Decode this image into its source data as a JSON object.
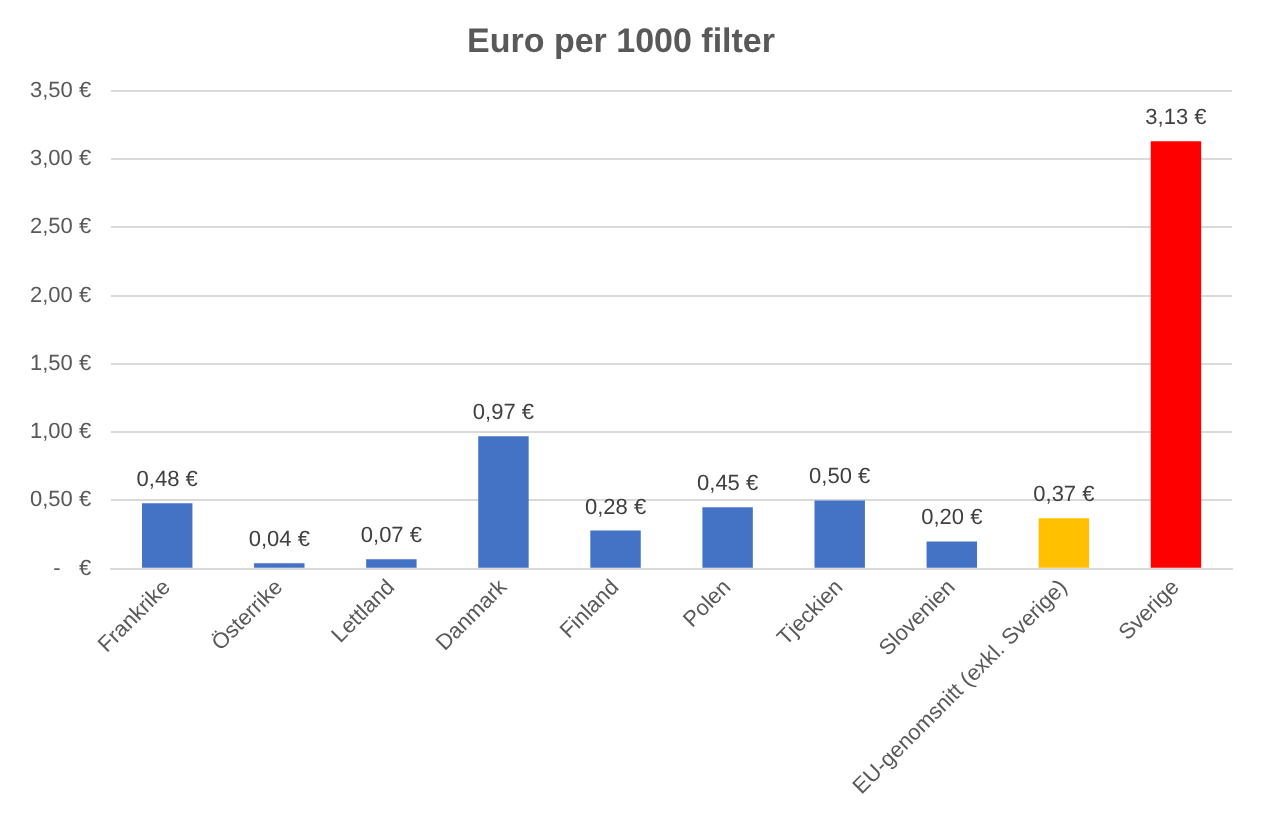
{
  "chart_data": {
    "type": "bar",
    "title": "Euro per 1000 filter",
    "categories": [
      "Frankrike",
      "Österrike",
      "Lettland",
      "Danmark",
      "Finland",
      "Polen",
      "Tjeckien",
      "Slovenien",
      "EU-genomsnitt (exkl. Sverige)",
      "Sverige"
    ],
    "values": [
      0.48,
      0.04,
      0.07,
      0.97,
      0.28,
      0.45,
      0.5,
      0.2,
      0.37,
      3.13
    ],
    "colors": [
      "#4472c4",
      "#4472c4",
      "#4472c4",
      "#4472c4",
      "#4472c4",
      "#4472c4",
      "#4472c4",
      "#4472c4",
      "#ffc000",
      "#ff0000"
    ],
    "value_labels": [
      "0,48 €",
      "0,04 €",
      "0,07 €",
      "0,97 €",
      "0,28 €",
      "0,45 €",
      "0,50 €",
      "0,20 €",
      "0,37 €",
      "3,13 €"
    ],
    "ylim": [
      0,
      3.5
    ],
    "yticks": [
      {
        "value": 0,
        "label": "-   €"
      },
      {
        "value": 0.5,
        "label": "0,50 €"
      },
      {
        "value": 1,
        "label": "1,00 €"
      },
      {
        "value": 1.5,
        "label": "1,50 €"
      },
      {
        "value": 2,
        "label": "2,00 €"
      },
      {
        "value": 2.5,
        "label": "2,50 €"
      },
      {
        "value": 3,
        "label": "3,00 €"
      },
      {
        "value": 3.5,
        "label": "3,50 €"
      }
    ],
    "grid": "y",
    "legend": false
  }
}
